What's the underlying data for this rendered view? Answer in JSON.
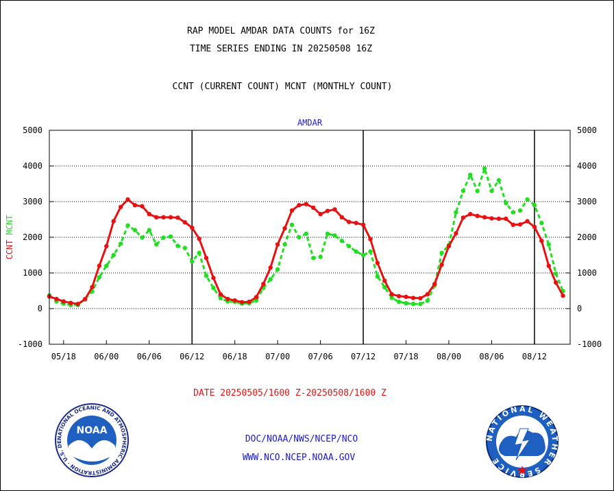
{
  "header": {
    "title_line1": "RAP MODEL AMDAR DATA COUNTS for 16Z",
    "title_line2": "TIME SERIES ENDING IN 20250508 16Z",
    "subtitle": "CCNT (CURRENT COUNT) MCNT (MONTHLY COUNT)"
  },
  "footer": {
    "date_range": "DATE 20250505/1600 Z-20250508/1600 Z",
    "org_line": "DOC/NOAA/NWS/NCEP/NCO",
    "url_line": "WWW.NCO.NCEP.NOAA.GOV",
    "noaa_logo_text": "NOAA",
    "noaa_ring_text": "NATIONAL OCEANIC AND ATMOSPHERIC ADMINISTRATION · U.S. DEPARTMENT OF COMMERCE ·",
    "nws_ring_text": "NATIONAL WEATHER SERVICE"
  },
  "colors": {
    "ccnt": "#e81010",
    "mcnt": "#22dd22",
    "title_blue": "#1a1acc"
  },
  "chart_data": {
    "type": "line",
    "title": "AMDAR",
    "ylabel_parts": [
      {
        "text": "CCNT",
        "color": "#e81010"
      },
      {
        "text": "MCNT",
        "color": "#22dd22"
      }
    ],
    "ylim": [
      -1000,
      5000
    ],
    "yticks": [
      -1000,
      0,
      1000,
      2000,
      3000,
      4000,
      5000
    ],
    "xlim": [
      0,
      73
    ],
    "x_tick_labels": [
      {
        "x": 2,
        "label": "05/18"
      },
      {
        "x": 8,
        "label": "06/00"
      },
      {
        "x": 14,
        "label": "06/06"
      },
      {
        "x": 20,
        "label": "06/12"
      },
      {
        "x": 26,
        "label": "06/18"
      },
      {
        "x": 32,
        "label": "07/00"
      },
      {
        "x": 38,
        "label": "07/06"
      },
      {
        "x": 44,
        "label": "07/12"
      },
      {
        "x": 50,
        "label": "07/18"
      },
      {
        "x": 56,
        "label": "08/00"
      },
      {
        "x": 62,
        "label": "08/06"
      },
      {
        "x": 68,
        "label": "08/12"
      }
    ],
    "day_separators": [
      20,
      44,
      68
    ],
    "grid": true,
    "series": [
      {
        "name": "CCNT",
        "color": "#e81010",
        "style": "solid",
        "values": [
          340,
          270,
          200,
          160,
          130,
          260,
          600,
          1200,
          1750,
          2450,
          2850,
          3060,
          2900,
          2870,
          2650,
          2560,
          2560,
          2560,
          2550,
          2420,
          2270,
          1960,
          1420,
          860,
          400,
          270,
          230,
          180,
          190,
          320,
          690,
          1150,
          1800,
          2250,
          2750,
          2900,
          2930,
          2830,
          2650,
          2740,
          2780,
          2560,
          2430,
          2400,
          2350,
          1950,
          1280,
          780,
          400,
          350,
          330,
          300,
          290,
          400,
          690,
          1230,
          1750,
          2110,
          2550,
          2650,
          2600,
          2560,
          2530,
          2520,
          2520,
          2350,
          2360,
          2450,
          2290,
          1900,
          1200,
          730,
          360
        ]
      },
      {
        "name": "MCNT",
        "color": "#22dd22",
        "style": "dashed",
        "values": [
          370,
          200,
          140,
          100,
          100,
          270,
          480,
          880,
          1200,
          1500,
          1820,
          2330,
          2200,
          1990,
          2200,
          1800,
          1990,
          2020,
          1760,
          1700,
          1320,
          1560,
          920,
          580,
          290,
          200,
          190,
          140,
          150,
          230,
          580,
          820,
          1100,
          1800,
          2350,
          2000,
          2100,
          1420,
          1450,
          2100,
          2050,
          1900,
          1750,
          1600,
          1500,
          1600,
          900,
          600,
          300,
          190,
          150,
          130,
          130,
          220,
          650,
          1560,
          1780,
          2700,
          3300,
          3750,
          3300,
          3930,
          3300,
          3600,
          2960,
          2700,
          2750,
          3060,
          2900,
          2400,
          1800,
          980,
          490
        ]
      }
    ]
  }
}
